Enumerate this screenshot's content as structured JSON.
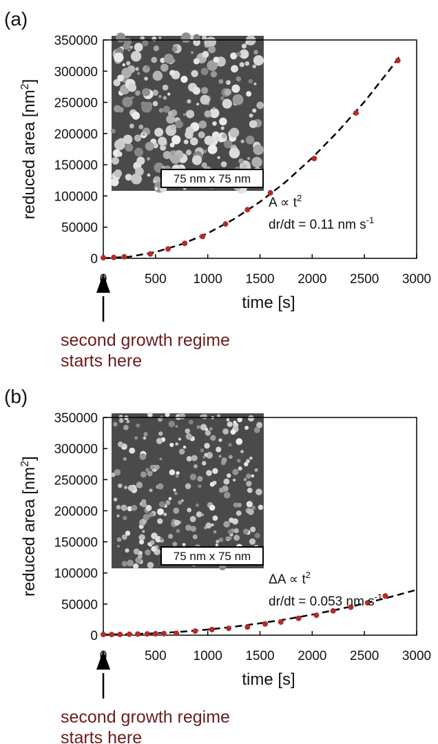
{
  "chart_data": [
    {
      "type": "scatter",
      "panel_label": "(a)",
      "xlabel": "time [s]",
      "ylabel": {
        "text": "reduced area [nm",
        "superscript": "2",
        "tail": "]"
      },
      "x": [
        0,
        100,
        200,
        450,
        620,
        780,
        950,
        1170,
        1380,
        1600,
        2020,
        2420,
        2820
      ],
      "values": [
        1000,
        1500,
        2500,
        7000,
        15000,
        24000,
        35000,
        55000,
        78000,
        105000,
        160000,
        233000,
        317000
      ],
      "color": "#b52a2a",
      "fit": {
        "x": [
          0,
          250,
          500,
          750,
          1000,
          1250,
          1500,
          1750,
          2000,
          2250,
          2500,
          2750,
          2850
        ],
        "values": [
          0,
          2500,
          10000,
          22600,
          40200,
          62800,
          90500,
          123000,
          161000,
          204000,
          251000,
          304000,
          327000
        ]
      },
      "xlim": [
        0,
        3000
      ],
      "xticks": [
        0,
        500,
        1000,
        1500,
        2000,
        2500,
        3000
      ],
      "ylim": [
        0,
        350000
      ],
      "yticks": [
        0,
        50000,
        100000,
        150000,
        200000,
        250000,
        300000,
        350000
      ],
      "inset_label": "75 nm x 75 nm",
      "annotations": [
        {
          "text": "A ∝ t",
          "superscript": "2"
        },
        {
          "text": "dr/dt = 0.11 nm s",
          "superscript": "-1"
        }
      ],
      "note": [
        "second growth regime",
        "starts here"
      ]
    },
    {
      "type": "scatter",
      "panel_label": "(b)",
      "xlabel": "time [s]",
      "ylabel": {
        "text": "reduced area [nm",
        "superscript": "2",
        "tail": "]"
      },
      "x": [
        0,
        80,
        160,
        250,
        330,
        420,
        500,
        580,
        700,
        880,
        1040,
        1200,
        1380,
        1550,
        1700,
        1870,
        2040,
        2200,
        2370,
        2530,
        2700
      ],
      "values": [
        1000,
        1000,
        1200,
        1500,
        1800,
        2000,
        2200,
        2500,
        3000,
        6500,
        9000,
        11000,
        13000,
        18000,
        21000,
        27000,
        32000,
        39000,
        45000,
        52000,
        63000
      ],
      "color": "#b52a2a",
      "fit": {
        "x": [
          0,
          250,
          500,
          750,
          1000,
          1250,
          1500,
          1750,
          2000,
          2250,
          2500,
          2750,
          3000
        ],
        "values": [
          1000,
          1500,
          3000,
          5500,
          9000,
          13500,
          19000,
          25500,
          33000,
          41500,
          51000,
          61500,
          73000
        ]
      },
      "xlim": [
        0,
        3000
      ],
      "xticks": [
        0,
        500,
        1000,
        1500,
        2000,
        2500,
        3000
      ],
      "ylim": [
        0,
        350000
      ],
      "yticks": [
        0,
        50000,
        100000,
        150000,
        200000,
        250000,
        300000,
        350000
      ],
      "inset_label": "75 nm x 75 nm",
      "annotations": [
        {
          "text": "ΔA ∝ t",
          "superscript": "2"
        },
        {
          "text": "dr/dt = 0.053 nm s",
          "superscript": "-1"
        }
      ],
      "note": [
        "second growth regime",
        "starts here"
      ]
    }
  ]
}
